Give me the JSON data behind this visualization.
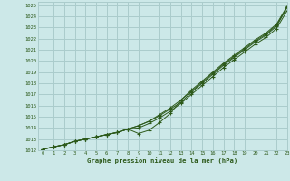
{
  "title": "Graphe pression niveau de la mer (hPa)",
  "bg_color": "#cce8e8",
  "grid_color": "#aacccc",
  "line_color": "#2d5a1b",
  "marker_color": "#2d5a1b",
  "xlim": [
    -0.5,
    23
  ],
  "ylim": [
    1012,
    1025.3
  ],
  "xticks": [
    0,
    1,
    2,
    3,
    4,
    5,
    6,
    7,
    8,
    9,
    10,
    11,
    12,
    13,
    14,
    15,
    16,
    17,
    18,
    19,
    20,
    21,
    22,
    23
  ],
  "yticks": [
    1012,
    1013,
    1014,
    1015,
    1016,
    1017,
    1018,
    1019,
    1020,
    1021,
    1022,
    1023,
    1024,
    1025
  ],
  "series": [
    [
      1012.1,
      1012.3,
      1012.5,
      1012.8,
      1013.0,
      1013.2,
      1013.4,
      1013.6,
      1013.9,
      1014.2,
      1014.6,
      1015.1,
      1015.7,
      1016.3,
      1017.2,
      1018.0,
      1018.8,
      1019.6,
      1020.3,
      1021.0,
      1021.7,
      1022.3,
      1023.1,
      1024.8
    ],
    [
      1012.1,
      1012.3,
      1012.5,
      1012.8,
      1013.0,
      1013.2,
      1013.4,
      1013.6,
      1013.9,
      1014.2,
      1014.6,
      1015.2,
      1015.8,
      1016.5,
      1017.4,
      1018.2,
      1019.0,
      1019.8,
      1020.5,
      1021.2,
      1021.9,
      1022.5,
      1023.3,
      1024.9
    ],
    [
      1012.1,
      1012.3,
      1012.5,
      1012.8,
      1013.0,
      1013.2,
      1013.4,
      1013.6,
      1013.9,
      1013.5,
      1013.8,
      1014.5,
      1015.3,
      1016.5,
      1017.3,
      1018.1,
      1018.9,
      1019.7,
      1020.4,
      1021.1,
      1021.8,
      1022.4,
      1023.2,
      1024.8
    ],
    [
      1012.1,
      1012.3,
      1012.5,
      1012.8,
      1013.0,
      1013.2,
      1013.4,
      1013.6,
      1013.9,
      1014.0,
      1014.4,
      1014.9,
      1015.5,
      1016.2,
      1017.0,
      1017.8,
      1018.6,
      1019.4,
      1020.1,
      1020.8,
      1021.5,
      1022.1,
      1022.9,
      1024.5
    ]
  ]
}
